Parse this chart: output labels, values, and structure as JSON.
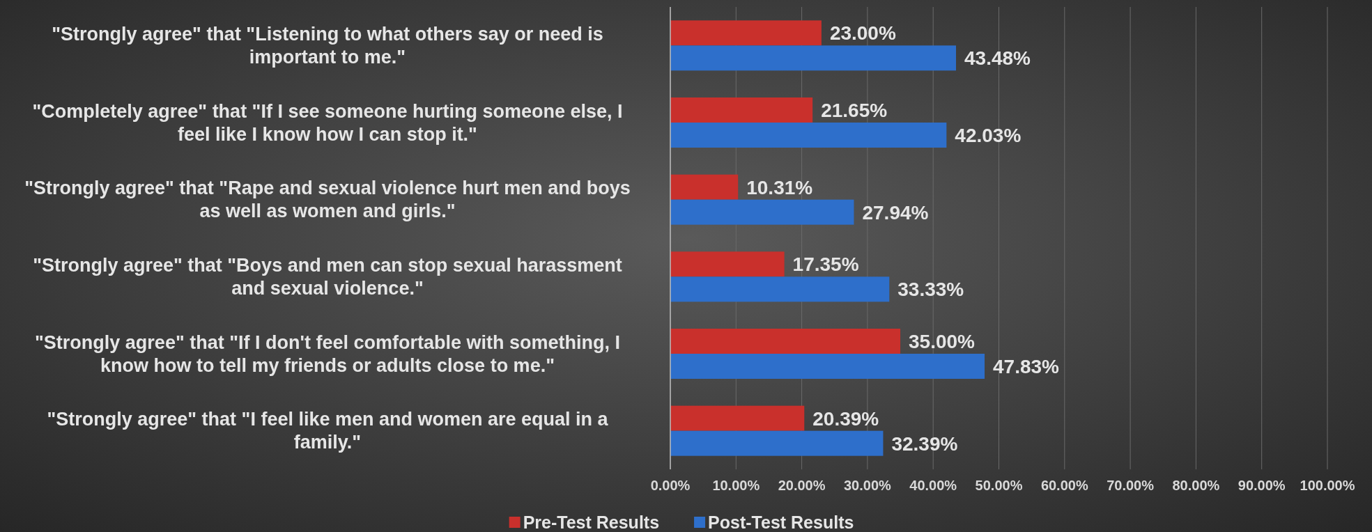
{
  "chart_data": {
    "type": "bar",
    "orientation": "horizontal",
    "categories": [
      "\"Strongly agree\" that \"Listening to what others say or need is important to me.\"",
      "\"Completely agree\" that \"If I see someone hurting someone else, I feel like I know how I can stop it.\"",
      "\"Strongly agree\" that \"Rape and sexual violence hurt men and boys as well as women and girls.\"",
      "\"Strongly agree\" that \"Boys and men can stop sexual harassment and sexual violence.\"",
      "\"Strongly agree\" that \"If I don't feel comfortable with something, I know how to tell my friends or adults close to me.\"",
      "\"Strongly agree\" that \"I feel like men and women are equal in a family.\""
    ],
    "series": [
      {
        "name": "Pre-Test Results",
        "color": "#c9302c",
        "values": [
          23,
          21.65,
          10.31,
          17.35,
          35,
          20.39
        ],
        "value_labels": [
          "23.00%",
          "21.65%",
          "10.31%",
          "17.35%",
          "35.00%",
          "20.39%"
        ]
      },
      {
        "name": "Post-Test Results",
        "color": "#2e6fcb",
        "values": [
          43.48,
          42.03,
          27.94,
          33.33,
          47.83,
          32.39
        ],
        "value_labels": [
          "43.48%",
          "42.03%",
          "27.94%",
          "33.33%",
          "47.83%",
          "32.39%"
        ]
      }
    ],
    "xlim": [
      0,
      100
    ],
    "xticks": [
      {
        "value": 0,
        "label": "0.00%"
      },
      {
        "value": 10,
        "label": "10.00%"
      },
      {
        "value": 20,
        "label": "20.00%"
      },
      {
        "value": 30,
        "label": "30.00%"
      },
      {
        "value": 40,
        "label": "40.00%"
      },
      {
        "value": 50,
        "label": "50.00%"
      },
      {
        "value": 60,
        "label": "60.00%"
      },
      {
        "value": 70,
        "label": "70.00%"
      },
      {
        "value": 80,
        "label": "80.00%"
      },
      {
        "value": 90,
        "label": "90.00%"
      },
      {
        "value": 100,
        "label": "100.00%"
      }
    ],
    "grid": "x",
    "legend": "bottom"
  }
}
